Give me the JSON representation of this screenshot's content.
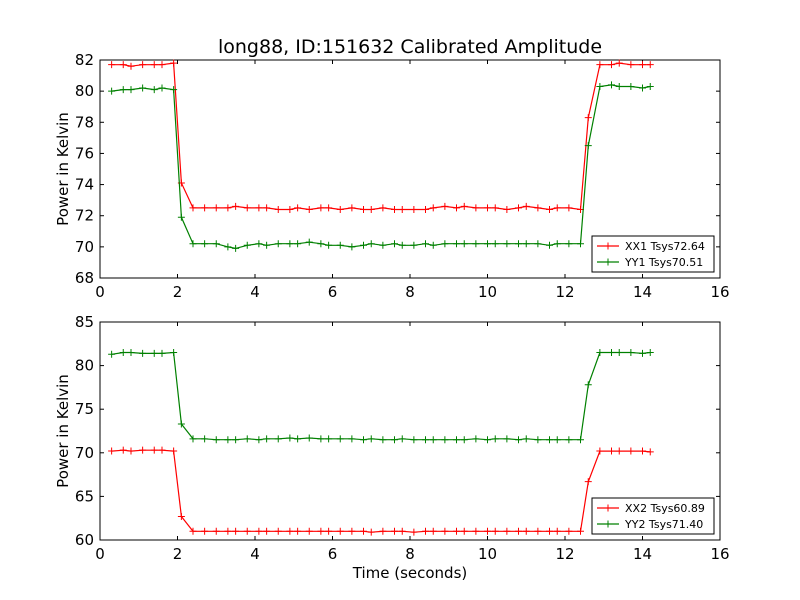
{
  "figure": {
    "title": "long88, ID:151632 Calibrated Amplitude",
    "xlabel": "Time (seconds)"
  },
  "colors": {
    "red": "#ff0000",
    "green": "#008000"
  },
  "chart_data": [
    {
      "type": "line",
      "ylabel": "Power in Kelvin",
      "xlim": [
        0,
        16
      ],
      "ylim": [
        68,
        82
      ],
      "xticks": [
        0,
        2,
        4,
        6,
        8,
        10,
        12,
        14,
        16
      ],
      "yticks": [
        68,
        70,
        72,
        74,
        76,
        78,
        80,
        82
      ],
      "legend_position": "bottom-right",
      "x": [
        0.3,
        0.6,
        0.8,
        1.1,
        1.4,
        1.6,
        1.9,
        2.1,
        2.4,
        2.7,
        3.0,
        3.3,
        3.5,
        3.8,
        4.1,
        4.3,
        4.6,
        4.9,
        5.1,
        5.4,
        5.7,
        5.9,
        6.2,
        6.5,
        6.8,
        7.0,
        7.3,
        7.6,
        7.8,
        8.1,
        8.4,
        8.6,
        8.9,
        9.2,
        9.4,
        9.7,
        10.0,
        10.2,
        10.5,
        10.8,
        11.0,
        11.3,
        11.6,
        11.8,
        12.1,
        12.4,
        12.6,
        12.9,
        13.2,
        13.4,
        13.7,
        14.0,
        14.2
      ],
      "series": [
        {
          "name": "XX1 Tsys72.64",
          "color": "#ff0000",
          "values": [
            81.7,
            81.7,
            81.6,
            81.7,
            81.7,
            81.7,
            81.8,
            74.1,
            72.5,
            72.5,
            72.5,
            72.5,
            72.6,
            72.5,
            72.5,
            72.5,
            72.4,
            72.4,
            72.5,
            72.4,
            72.5,
            72.5,
            72.4,
            72.5,
            72.4,
            72.4,
            72.5,
            72.4,
            72.4,
            72.4,
            72.4,
            72.5,
            72.6,
            72.5,
            72.6,
            72.5,
            72.5,
            72.5,
            72.4,
            72.5,
            72.6,
            72.5,
            72.4,
            72.5,
            72.5,
            72.4,
            78.3,
            81.7,
            81.7,
            81.8,
            81.7,
            81.7,
            81.7
          ]
        },
        {
          "name": "YY1 Tsys70.51",
          "color": "#008000",
          "values": [
            80.0,
            80.1,
            80.1,
            80.2,
            80.1,
            80.2,
            80.1,
            71.9,
            70.2,
            70.2,
            70.2,
            70.0,
            69.9,
            70.1,
            70.2,
            70.1,
            70.2,
            70.2,
            70.2,
            70.3,
            70.2,
            70.1,
            70.1,
            70.0,
            70.1,
            70.2,
            70.1,
            70.2,
            70.1,
            70.1,
            70.2,
            70.1,
            70.2,
            70.2,
            70.2,
            70.2,
            70.2,
            70.2,
            70.2,
            70.2,
            70.2,
            70.2,
            70.1,
            70.2,
            70.2,
            70.2,
            76.5,
            80.3,
            80.4,
            80.3,
            80.3,
            80.2,
            80.3
          ]
        }
      ]
    },
    {
      "type": "line",
      "ylabel": "Power in Kelvin",
      "xlim": [
        0,
        16
      ],
      "ylim": [
        60,
        85
      ],
      "xticks": [
        0,
        2,
        4,
        6,
        8,
        10,
        12,
        14,
        16
      ],
      "yticks": [
        60,
        65,
        70,
        75,
        80,
        85
      ],
      "legend_position": "bottom-right",
      "x": [
        0.3,
        0.6,
        0.8,
        1.1,
        1.4,
        1.6,
        1.9,
        2.1,
        2.4,
        2.7,
        3.0,
        3.3,
        3.5,
        3.8,
        4.1,
        4.3,
        4.6,
        4.9,
        5.1,
        5.4,
        5.7,
        5.9,
        6.2,
        6.5,
        6.8,
        7.0,
        7.3,
        7.6,
        7.8,
        8.1,
        8.4,
        8.6,
        8.9,
        9.2,
        9.4,
        9.7,
        10.0,
        10.2,
        10.5,
        10.8,
        11.0,
        11.3,
        11.6,
        11.8,
        12.1,
        12.4,
        12.6,
        12.9,
        13.2,
        13.4,
        13.7,
        14.0,
        14.2
      ],
      "series": [
        {
          "name": "XX2 Tsys60.89",
          "color": "#ff0000",
          "values": [
            70.2,
            70.3,
            70.2,
            70.3,
            70.3,
            70.3,
            70.2,
            62.7,
            61.0,
            61.0,
            61.0,
            61.0,
            61.0,
            61.0,
            61.0,
            61.0,
            61.0,
            61.0,
            61.0,
            61.0,
            61.0,
            61.0,
            61.0,
            61.0,
            61.0,
            60.9,
            61.0,
            61.0,
            61.0,
            60.9,
            61.0,
            61.0,
            61.0,
            61.0,
            61.0,
            61.0,
            61.0,
            61.0,
            61.0,
            61.0,
            61.0,
            61.0,
            61.0,
            61.0,
            61.0,
            61.0,
            66.7,
            70.2,
            70.2,
            70.2,
            70.2,
            70.2,
            70.1
          ]
        },
        {
          "name": "YY2 Tsys71.40",
          "color": "#008000",
          "values": [
            81.3,
            81.5,
            81.5,
            81.4,
            81.4,
            81.4,
            81.5,
            73.3,
            71.6,
            71.6,
            71.5,
            71.5,
            71.5,
            71.6,
            71.5,
            71.6,
            71.6,
            71.7,
            71.6,
            71.7,
            71.6,
            71.6,
            71.6,
            71.6,
            71.5,
            71.6,
            71.5,
            71.5,
            71.6,
            71.5,
            71.5,
            71.5,
            71.5,
            71.5,
            71.5,
            71.6,
            71.5,
            71.6,
            71.6,
            71.5,
            71.6,
            71.5,
            71.5,
            71.5,
            71.5,
            71.5,
            77.8,
            81.5,
            81.5,
            81.5,
            81.5,
            81.4,
            81.5
          ]
        }
      ]
    }
  ]
}
